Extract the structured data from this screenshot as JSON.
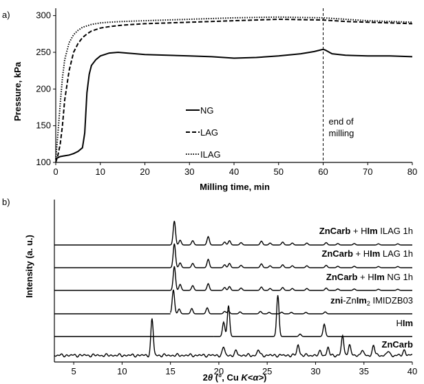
{
  "chart_data": [
    {
      "panel_label": "a)",
      "type": "line",
      "xlabel": "Milling time, min",
      "ylabel": "Pressure, kPa",
      "xlim": [
        0,
        80
      ],
      "ylim": [
        100,
        310
      ],
      "xticks": [
        0,
        10,
        20,
        30,
        40,
        50,
        60,
        70,
        80
      ],
      "yticks": [
        100,
        150,
        200,
        250,
        300
      ],
      "grid": false,
      "legend_position": "center",
      "annotation": {
        "x": 60,
        "lines": [
          "end of",
          "milling"
        ]
      },
      "series": [
        {
          "name": "NG",
          "dash": "solid",
          "x": [
            0,
            1,
            2,
            3,
            4,
            5,
            6,
            6.5,
            7,
            7.5,
            8,
            9,
            10,
            12,
            14,
            16,
            20,
            25,
            30,
            35,
            40,
            45,
            50,
            55,
            58,
            60,
            60.5,
            62,
            65,
            70,
            75,
            80
          ],
          "y": [
            105,
            108,
            109,
            110,
            112,
            115,
            120,
            140,
            195,
            220,
            232,
            240,
            245,
            249,
            250,
            249,
            247,
            246,
            245,
            244,
            242,
            243,
            245,
            248,
            251,
            254,
            253,
            248,
            246,
            245,
            245,
            244
          ]
        },
        {
          "name": "LAG",
          "dash": "dashed",
          "x": [
            0,
            0.5,
            1,
            1.5,
            2,
            3,
            4,
            5,
            6,
            7,
            8,
            10,
            12,
            15,
            20,
            30,
            40,
            50,
            60,
            65,
            70,
            75,
            80
          ],
          "y": [
            100,
            110,
            125,
            150,
            185,
            225,
            250,
            262,
            270,
            275,
            279,
            283,
            285,
            287,
            289,
            291,
            293,
            295,
            294,
            292,
            291,
            290,
            289
          ]
        },
        {
          "name": "ILAG",
          "dash": "dotted",
          "x": [
            0,
            0.5,
            1,
            1.5,
            2,
            3,
            4,
            5,
            6,
            7,
            8,
            10,
            12,
            15,
            20,
            30,
            40,
            50,
            60,
            65,
            70,
            75,
            80
          ],
          "y": [
            104,
            140,
            180,
            215,
            240,
            263,
            274,
            280,
            284,
            286,
            288,
            290,
            291,
            292,
            293,
            295,
            297,
            298,
            297,
            295,
            293,
            292,
            291
          ]
        }
      ]
    },
    {
      "panel_label": "b)",
      "type": "line",
      "xlabel_prefix": "2",
      "xlabel_theta": "θ",
      "xlabel_mid": " (°, Cu ",
      "xlabel_k": "K",
      "xlabel_alpha": "<α>",
      "xlabel_end": ")",
      "ylabel": "Intensity (a. u.)",
      "xlim": [
        3,
        40
      ],
      "xticks": [
        5,
        10,
        15,
        20,
        25,
        30,
        35,
        40
      ],
      "grid": false,
      "traces": [
        {
          "label_bold": "ZnCarb",
          "label_rest": "",
          "peaks": [
            [
              13.1,
              1.0
            ],
            [
              20.5,
              0.22
            ],
            [
              21.8,
              0.12
            ],
            [
              24.1,
              0.15
            ],
            [
              28.2,
              0.3
            ],
            [
              30.5,
              0.12
            ],
            [
              31.3,
              0.2
            ],
            [
              32.8,
              0.55
            ],
            [
              33.5,
              0.3
            ],
            [
              34.8,
              0.15
            ],
            [
              36.0,
              0.28
            ],
            [
              37.5,
              0.12
            ],
            [
              39.2,
              0.15
            ]
          ]
        },
        {
          "label_bold": "",
          "label_rest": "HIm",
          "peaks": [
            [
              20.5,
              0.35
            ],
            [
              21.0,
              0.75
            ],
            [
              26.1,
              1.0
            ],
            [
              28.4,
              0.06
            ],
            [
              30.9,
              0.3
            ]
          ]
        },
        {
          "label_bold": "",
          "label_rest": "zni-ZnIm2 IMIDZB03",
          "peaks": [
            [
              15.3,
              1.0
            ],
            [
              15.9,
              0.2
            ],
            [
              17.2,
              0.22
            ],
            [
              18.8,
              0.25
            ],
            [
              20.6,
              0.1
            ],
            [
              21.0,
              0.12
            ],
            [
              22.2,
              0.08
            ],
            [
              24.3,
              0.1
            ],
            [
              25.2,
              0.06
            ],
            [
              26.5,
              0.07
            ],
            [
              27.5,
              0.06
            ],
            [
              29.0,
              0.06
            ],
            [
              31.0,
              0.08
            ]
          ]
        },
        {
          "label_bold": "ZnCarb",
          "label_rest": " + HIm NG 1h",
          "peaks": [
            [
              15.4,
              1.0
            ],
            [
              16.0,
              0.25
            ],
            [
              17.3,
              0.2
            ],
            [
              18.9,
              0.28
            ],
            [
              20.6,
              0.12
            ],
            [
              21.1,
              0.16
            ],
            [
              22.3,
              0.1
            ],
            [
              24.4,
              0.14
            ],
            [
              25.3,
              0.08
            ],
            [
              26.6,
              0.12
            ],
            [
              27.6,
              0.08
            ],
            [
              29.1,
              0.08
            ],
            [
              31.1,
              0.1
            ],
            [
              32.3,
              0.06
            ],
            [
              34.0,
              0.06
            ],
            [
              36.5,
              0.05
            ],
            [
              38.5,
              0.05
            ]
          ]
        },
        {
          "label_bold": "ZnCarb",
          "label_rest": " + HIm LAG 1h",
          "peaks": [
            [
              15.4,
              1.0
            ],
            [
              16.0,
              0.2
            ],
            [
              17.3,
              0.18
            ],
            [
              18.9,
              0.35
            ],
            [
              20.6,
              0.12
            ],
            [
              21.1,
              0.18
            ],
            [
              22.3,
              0.1
            ],
            [
              24.4,
              0.16
            ],
            [
              25.3,
              0.08
            ],
            [
              26.6,
              0.12
            ],
            [
              27.6,
              0.08
            ],
            [
              29.1,
              0.08
            ],
            [
              31.1,
              0.1
            ],
            [
              32.3,
              0.06
            ],
            [
              34.0,
              0.06
            ],
            [
              36.5,
              0.05
            ],
            [
              38.5,
              0.05
            ]
          ]
        },
        {
          "label_bold": "ZnCarb",
          "label_rest": " + HIm ILAG 1h",
          "peaks": [
            [
              15.4,
              1.0
            ],
            [
              16.0,
              0.2
            ],
            [
              17.3,
              0.18
            ],
            [
              18.9,
              0.35
            ],
            [
              20.6,
              0.12
            ],
            [
              21.1,
              0.18
            ],
            [
              22.3,
              0.1
            ],
            [
              24.4,
              0.16
            ],
            [
              25.3,
              0.08
            ],
            [
              26.6,
              0.12
            ],
            [
              27.6,
              0.08
            ],
            [
              29.1,
              0.08
            ],
            [
              31.1,
              0.1
            ],
            [
              32.3,
              0.06
            ],
            [
              34.0,
              0.06
            ],
            [
              36.5,
              0.05
            ],
            [
              38.5,
              0.05
            ]
          ]
        }
      ]
    }
  ]
}
